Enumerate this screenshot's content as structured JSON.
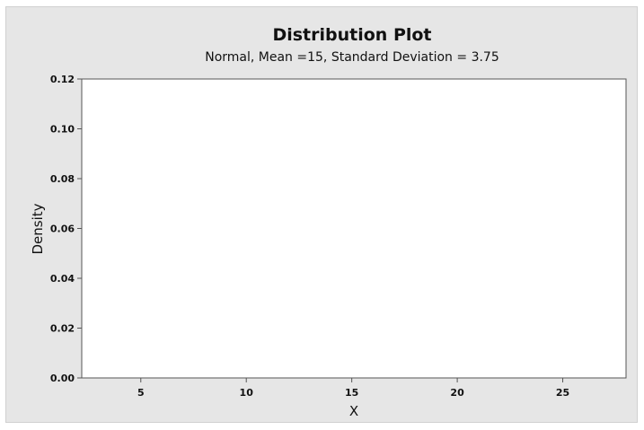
{
  "chart_data": {
    "type": "line",
    "title": "Distribution Plot",
    "subtitle": "Normal, Mean =15, Standard Deviation = 3.75",
    "xlabel": "X",
    "ylabel": "Density",
    "xlim": [
      2.2,
      28.0
    ],
    "ylim": [
      0,
      0.12
    ],
    "x_ticks": [
      5,
      10,
      15,
      20,
      25
    ],
    "x_tick_labels": [
      "5",
      "10",
      "15",
      "20",
      "25"
    ],
    "y_ticks": [
      0,
      0.02,
      0.04,
      0.06,
      0.08,
      0.1,
      0.12
    ],
    "y_tick_labels": [
      "0.00",
      "0.02",
      "0.04",
      "0.06",
      "0.08",
      "0.10",
      "0.12"
    ],
    "grid": false,
    "legend": "none",
    "series": [],
    "colors": {
      "figure_background": "#e6e6e6",
      "plot_background": "#ffffff",
      "axis": "#555555"
    }
  }
}
